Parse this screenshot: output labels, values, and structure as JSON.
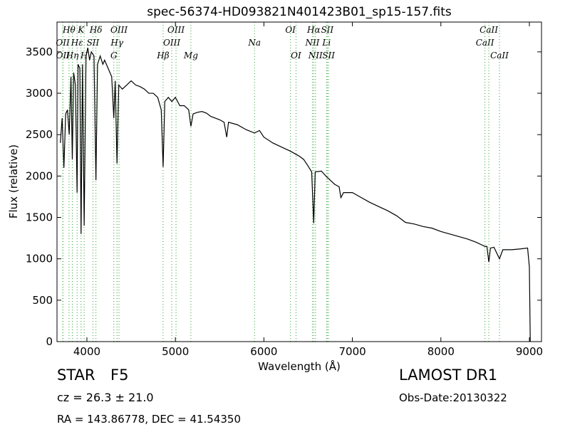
{
  "chart_data": {
    "type": "line",
    "title": "spec-56374-HD093821N401423B01_sp15-157.fits",
    "x_label": "Wavelength (Å)",
    "y_label": "Flux (relative)",
    "color": "#000000",
    "line_color": "#2ca02c",
    "xlim": [
      3662,
      9137
    ],
    "ylim": [
      0,
      3860
    ],
    "xticks": [
      4000,
      5000,
      6000,
      7000,
      8000,
      9000
    ],
    "yticks": [
      0,
      500,
      1000,
      1500,
      2000,
      2500,
      3000,
      3500
    ],
    "x": [
      3700,
      3720,
      3740,
      3760,
      3780,
      3800,
      3820,
      3835,
      3850,
      3870,
      3889,
      3900,
      3920,
      3934,
      3950,
      3969,
      3990,
      4010,
      4030,
      4050,
      4080,
      4102,
      4120,
      4150,
      4180,
      4200,
      4240,
      4280,
      4304,
      4320,
      4340,
      4360,
      4400,
      4450,
      4500,
      4550,
      4600,
      4650,
      4700,
      4750,
      4800,
      4840,
      4861,
      4880,
      4920,
      4960,
      5000,
      5050,
      5100,
      5150,
      5175,
      5200,
      5250,
      5300,
      5350,
      5400,
      5450,
      5500,
      5550,
      5580,
      5600,
      5700,
      5800,
      5894,
      5950,
      6000,
      6100,
      6200,
      6300,
      6400,
      6450,
      6500,
      6540,
      6563,
      6580,
      6650,
      6700,
      6750,
      6800,
      6850,
      6870,
      6900,
      7000,
      7100,
      7200,
      7400,
      7500,
      7600,
      7700,
      7800,
      7900,
      8000,
      8100,
      8200,
      8300,
      8400,
      8498,
      8520,
      8542,
      8560,
      8600,
      8662,
      8700,
      8800,
      8900,
      8980,
      9000,
      9010
    ],
    "values": [
      2400,
      2700,
      2100,
      2750,
      2800,
      2500,
      3200,
      2200,
      3250,
      3100,
      1800,
      3350,
      3300,
      1300,
      3350,
      1400,
      3450,
      3550,
      3400,
      3500,
      3450,
      1950,
      3350,
      3450,
      3350,
      3400,
      3300,
      3200,
      2700,
      3150,
      2150,
      3100,
      3050,
      3100,
      3150,
      3100,
      3080,
      3050,
      3000,
      3000,
      2950,
      2800,
      2110,
      2900,
      2950,
      2900,
      2950,
      2850,
      2850,
      2800,
      2600,
      2750,
      2770,
      2780,
      2760,
      2720,
      2700,
      2680,
      2650,
      2470,
      2650,
      2620,
      2560,
      2520,
      2550,
      2470,
      2400,
      2350,
      2300,
      2240,
      2200,
      2120,
      2050,
      1430,
      2050,
      2060,
      2000,
      1950,
      1900,
      1870,
      1740,
      1800,
      1800,
      1740,
      1680,
      1580,
      1520,
      1440,
      1420,
      1390,
      1370,
      1330,
      1300,
      1270,
      1240,
      1200,
      1150,
      1150,
      960,
      1130,
      1140,
      1000,
      1110,
      1110,
      1120,
      1130,
      900,
      0
    ],
    "lines": [
      {
        "label": "OII",
        "x": 3727
      },
      {
        "label": "OII",
        "x": 3729
      },
      {
        "label": "Hθ",
        "x": 3798
      },
      {
        "label": "Hη",
        "x": 3835
      },
      {
        "label": "Hε",
        "x": 3889
      },
      {
        "label": "K",
        "x": 3934
      },
      {
        "label": "H",
        "x": 3969
      },
      {
        "label": "SII",
        "x": 4068
      },
      {
        "label": "Hδ",
        "x": 4102
      },
      {
        "label": "G",
        "x": 4304
      },
      {
        "label": "Hγ",
        "x": 4340
      },
      {
        "label": "OIII",
        "x": 4363
      },
      {
        "label": "Hβ",
        "x": 4861
      },
      {
        "label": "OIII",
        "x": 4959
      },
      {
        "label": "OIII",
        "x": 5007
      },
      {
        "label": "Mg",
        "x": 5175
      },
      {
        "label": "Na",
        "x": 5894
      },
      {
        "label": "OI",
        "x": 6300
      },
      {
        "label": "OI",
        "x": 6363
      },
      {
        "label": "NII",
        "x": 6548
      },
      {
        "label": "Hα",
        "x": 6563
      },
      {
        "label": "NII",
        "x": 6583
      },
      {
        "label": "Li",
        "x": 6708
      },
      {
        "label": "SII",
        "x": 6716
      },
      {
        "label": "SII",
        "x": 6731
      },
      {
        "label": "CaII",
        "x": 8498
      },
      {
        "label": "CaII",
        "x": 8542
      },
      {
        "label": "CaII",
        "x": 8662
      }
    ]
  },
  "footer": {
    "class": "STAR",
    "subclass": "F5",
    "survey": "LAMOST DR1",
    "cz": "cz = 26.3 ± 21.0",
    "obs_date": "Obs-Date:20130322",
    "coords": "RA = 143.86778, DEC = 41.54350"
  }
}
